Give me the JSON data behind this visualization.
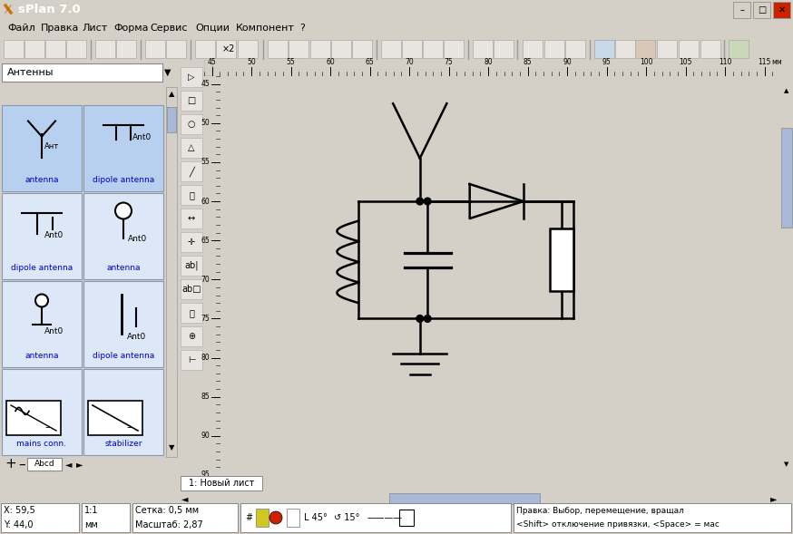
{
  "title": "sPlan 7.0",
  "title_bar_color": "#0054a6",
  "bg_color": "#d4d0c8",
  "canvas_bg": "#fffff0",
  "menu_items": [
    "Файл",
    "Правка",
    "Лист",
    "Форма",
    "Сервис",
    "Опции",
    "Компонент",
    "?"
  ],
  "menu_x": [
    8,
    45,
    90,
    125,
    165,
    215,
    260,
    330
  ],
  "dropdown_label": "Антенны",
  "component_labels_col0": [
    "antenna",
    "dipole antenna",
    "antenna",
    "mains conn."
  ],
  "component_labels_col1": [
    "dipole antenna",
    "antenna",
    "dipole antenna",
    "stabilizer"
  ],
  "tab_label": "1: Новый лист",
  "status_x": "X: 59,5",
  "status_y": "Y: 44,0",
  "status_scale": "1:1",
  "status_unit": "мм",
  "status_grid": "Сетка: 0,5 мм",
  "status_zoom": "Масштаб: 2,87",
  "status_right1": "Правка: Выбор, перемещение, вращал",
  "status_right2": "<Shift> отключение привязки, <Space> = мас",
  "ruler_ticks": [
    45,
    50,
    55,
    60,
    65,
    70,
    75,
    80,
    85,
    90,
    95,
    100,
    105,
    110,
    115
  ],
  "ruler_unit_label": "мм",
  "circuit_color": "#000000",
  "lw": 1.8,
  "dot_r": 0.45,
  "panel_cell_color_sel": "#b8d0f0",
  "panel_cell_color_norm": "#dce8f8",
  "panel_border": "#8898b0",
  "scrollbar_thumb": "#a8b8d8"
}
